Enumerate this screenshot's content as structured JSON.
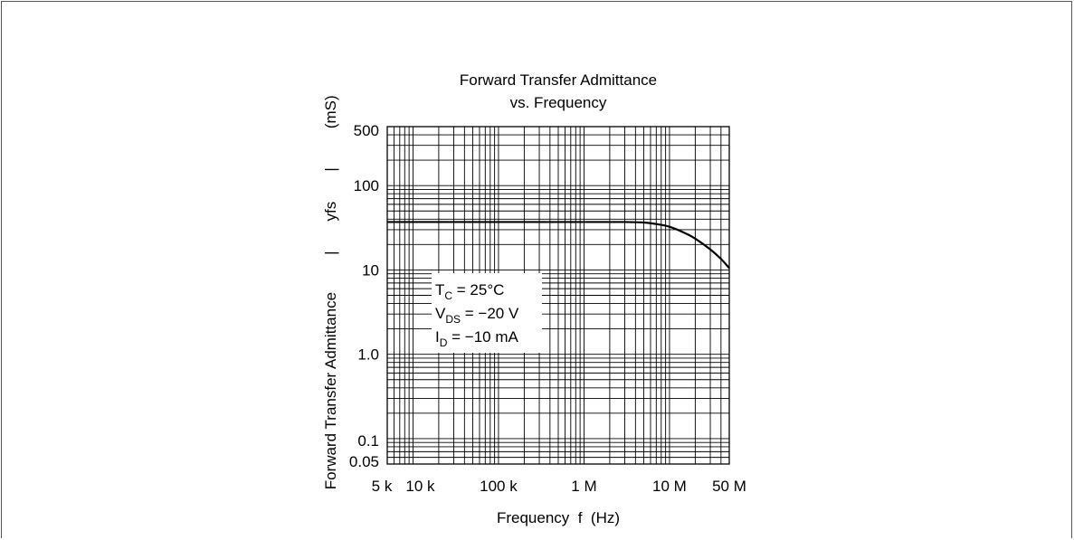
{
  "chart_data": {
    "type": "line",
    "title": [
      "Forward Transfer Admittance",
      "vs. Frequency"
    ],
    "xlabel": "Frequency  f  (Hz)",
    "ylabel": "Forward Transfer Admittance  ⏸yfs⏸  (mS)",
    "ylabel_parts": {
      "main": "Forward Transfer Admittance",
      "symbol": "yfs",
      "unit": "(mS)"
    },
    "x_scale": "log",
    "y_scale": "log",
    "xlim": [
      5000,
      50000000
    ],
    "ylim": [
      0.05,
      500
    ],
    "x_ticks": [
      {
        "value": 5000,
        "label": "5 k"
      },
      {
        "value": 10000,
        "label": "10 k"
      },
      {
        "value": 100000,
        "label": "100 k"
      },
      {
        "value": 1000000,
        "label": "1 M"
      },
      {
        "value": 10000000,
        "label": "10 M"
      },
      {
        "value": 50000000,
        "label": "50 M"
      }
    ],
    "y_ticks": [
      {
        "value": 0.05,
        "label": "0.05"
      },
      {
        "value": 0.1,
        "label": "0.1"
      },
      {
        "value": 1.0,
        "label": "1.0"
      },
      {
        "value": 10,
        "label": "10"
      },
      {
        "value": 100,
        "label": "100"
      },
      {
        "value": 500,
        "label": "500"
      }
    ],
    "grid": true,
    "series": [
      {
        "x": [
          5000,
          10000,
          100000,
          1000000,
          3000000,
          5000000,
          7000000,
          10000000,
          15000000,
          20000000,
          30000000,
          40000000,
          50000000
        ],
        "y": [
          37,
          37,
          37,
          37,
          37,
          36.5,
          35,
          32.5,
          27.5,
          23.5,
          17.5,
          13.5,
          10.5
        ]
      }
    ],
    "annotation": [
      {
        "base": "T",
        "sub": "C",
        "rest": " = 25°C"
      },
      {
        "base": "V",
        "sub": "DS",
        "rest": " = −20 V"
      },
      {
        "base": "I",
        "sub": "D",
        "rest": " = −10 mA"
      }
    ]
  }
}
